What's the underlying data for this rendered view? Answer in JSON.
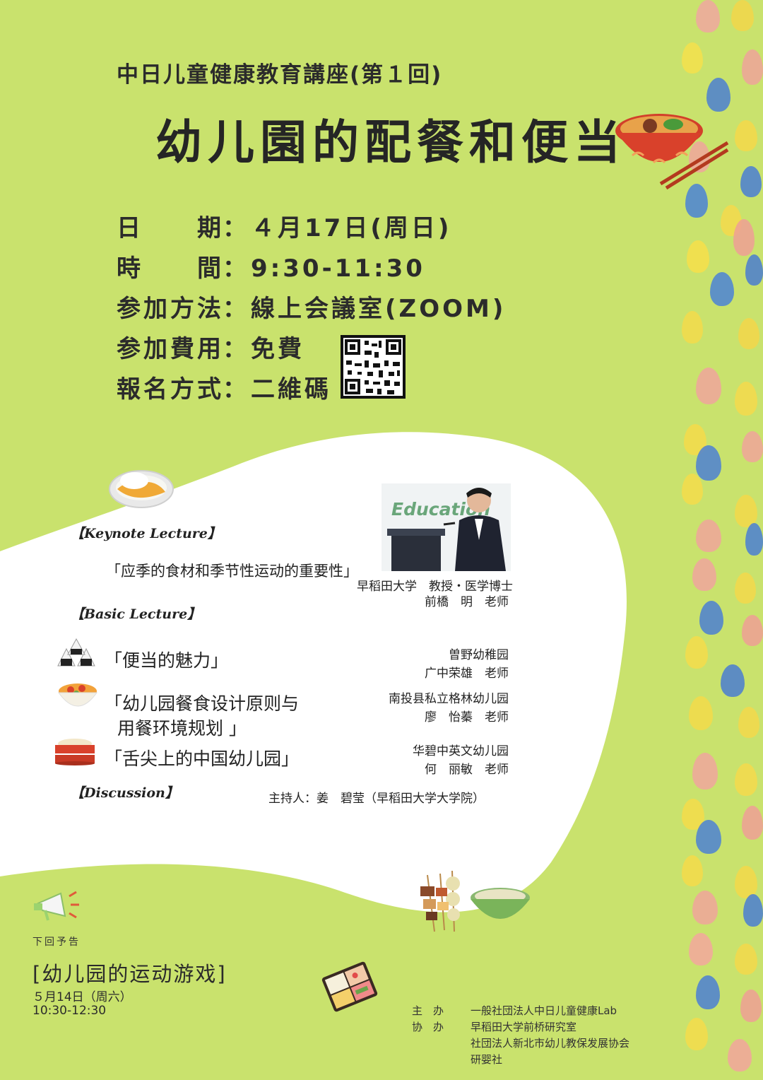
{
  "header": {
    "series_title": "中日儿童健康教育講座(第１回)",
    "main_title": "幼儿園的配餐和便当"
  },
  "info": [
    {
      "label": "日　　期",
      "value": "４月17日(周日)"
    },
    {
      "label": "時　　間",
      "value": "9:30-11:30"
    },
    {
      "label": "参加方法",
      "value": "線上会議室(ZOOM)"
    },
    {
      "label": "参加費用",
      "value": "免費"
    },
    {
      "label": "報名方式",
      "value": "二維碼"
    }
  ],
  "program": {
    "keynote": {
      "heading": "【Keynote Lecture】",
      "title": "「应季的食材和季节性运动的重要性」",
      "affiliation": "早稻田大学　教授・医学博士",
      "speaker": "前橋　明　老师",
      "photo_text": "Education"
    },
    "basic": {
      "heading": "【Basic Lecture】",
      "items": [
        {
          "title_line1": "「便当的魅力」",
          "title_line2": "",
          "affiliation": "曽野幼稚园",
          "speaker": "广中荣雄　老师"
        },
        {
          "title_line1": "「幼儿园餐食设计原则与",
          "title_line2": "用餐环境规划 」",
          "affiliation": "南投县私立格林幼儿园",
          "speaker": "廖　怡蓁　老师"
        },
        {
          "title_line1": "「舌尖上的中国幼儿园」",
          "title_line2": "",
          "affiliation": "华碧中英文幼儿园",
          "speaker": "何　丽敏　老师"
        }
      ]
    },
    "discussion": {
      "heading": "【Discussion】",
      "moderator": "主持人：姜　碧莹（早稻田大学大学院）"
    }
  },
  "next": {
    "label": "下回予告",
    "title": "[幼儿园的运动游戏]",
    "date": "５月14日（周六）",
    "time": "10:30-12:30"
  },
  "organizers": {
    "host_label": "主　办",
    "host": "一般社団法人中日儿童健康Lab",
    "co_label": "协　办",
    "co": [
      "早稻田大学前桥研究室",
      "社団法人新北市幼儿教保发展协会",
      "研婴社"
    ]
  },
  "colors": {
    "background": "#c9e26d",
    "panel": "#ffffff",
    "text": "#2b2b2b"
  }
}
